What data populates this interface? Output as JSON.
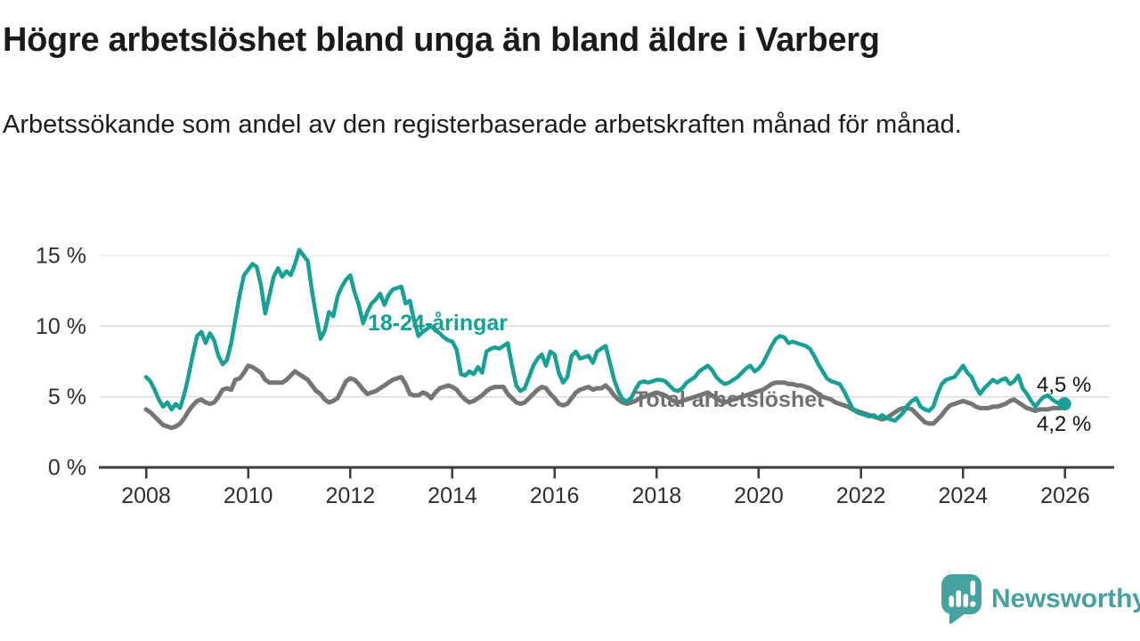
{
  "branding": {
    "logo_text": "Newsworthy",
    "logo_icon": "bar-chart-speech-bubble-icon",
    "brand_color": "#45a29e"
  },
  "chart_data": {
    "type": "line",
    "title": "Högre arbetslöshet bland unga än bland äldre i Varberg",
    "subtitle": "Arbetssökande som andel av den registerbaserade arbetskraften månad för månad.",
    "frequency": "monthly",
    "x_start": "2008-01",
    "x_end": "2025-12",
    "unit": "%",
    "grid": "horizontal",
    "legend_position": "inline-labels",
    "ylim": [
      0,
      18
    ],
    "y_ticks": [
      0,
      5,
      10,
      15
    ],
    "y_tick_labels": [
      "0 %",
      "5 %",
      "10 %",
      "15 %"
    ],
    "y_gridlines": [
      5,
      10,
      15
    ],
    "x_tick_years": [
      2008,
      2010,
      2012,
      2014,
      2016,
      2018,
      2020,
      2022,
      2024,
      2026
    ],
    "x_tick_labels": [
      "2008",
      "2010",
      "2012",
      "2014",
      "2016",
      "2018",
      "2020",
      "2022",
      "2024",
      "2026"
    ],
    "series": [
      {
        "name": "18-24-åringar",
        "color": "#17a095",
        "line_width": 4.5,
        "end_dot": true,
        "end_label": "4,5 %",
        "last_value": 4.5,
        "values": [
          6.4,
          6.1,
          5.5,
          4.8,
          4.3,
          4.6,
          4.1,
          4.5,
          4.2,
          5.2,
          6.5,
          8.0,
          9.3,
          9.6,
          8.8,
          9.5,
          9.0,
          7.9,
          7.3,
          7.6,
          8.8,
          10.5,
          12.2,
          13.6,
          14.0,
          14.4,
          14.2,
          12.9,
          10.9,
          12.2,
          13.5,
          14.1,
          13.5,
          13.9,
          13.6,
          14.4,
          15.4,
          15.0,
          14.6,
          12.5,
          10.7,
          9.1,
          9.7,
          11.0,
          10.7,
          12.1,
          12.8,
          13.3,
          13.6,
          12.4,
          11.5,
          10.2,
          11.0,
          11.6,
          11.9,
          12.3,
          11.5,
          12.2,
          12.6,
          12.7,
          12.8,
          11.6,
          11.8,
          10.4,
          9.3,
          9.6,
          9.8,
          10.0,
          9.7,
          9.5,
          9.2,
          9.0,
          8.9,
          8.3,
          6.6,
          6.5,
          6.8,
          6.6,
          7.1,
          6.7,
          8.2,
          8.4,
          8.5,
          8.4,
          8.6,
          8.8,
          7.2,
          5.8,
          5.4,
          5.6,
          6.4,
          7.2,
          7.7,
          8.0,
          7.2,
          8.2,
          8.0,
          6.7,
          6.0,
          6.4,
          7.9,
          8.2,
          7.7,
          7.8,
          7.9,
          7.4,
          8.2,
          8.4,
          8.6,
          7.4,
          6.2,
          5.4,
          4.8,
          4.7,
          4.9,
          5.5,
          6.0,
          6.1,
          6.0,
          6.1,
          6.2,
          6.2,
          6.1,
          5.8,
          5.5,
          5.4,
          5.6,
          6.0,
          6.2,
          6.4,
          6.8,
          7.0,
          7.2,
          6.9,
          6.4,
          6.1,
          5.9,
          6.0,
          6.2,
          6.4,
          6.7,
          7.0,
          7.2,
          6.8,
          7.0,
          7.4,
          8.0,
          8.6,
          9.1,
          9.3,
          9.2,
          8.8,
          8.9,
          8.8,
          8.7,
          8.6,
          8.4,
          7.9,
          7.3,
          6.8,
          6.3,
          6.1,
          6.0,
          5.9,
          5.4,
          4.8,
          4.2,
          3.9,
          3.8,
          3.7,
          3.6,
          3.7,
          3.5,
          3.7,
          3.5,
          3.4,
          3.3,
          3.6,
          3.9,
          4.4,
          4.7,
          4.9,
          4.3,
          4.1,
          4.0,
          4.3,
          5.2,
          5.9,
          6.2,
          6.3,
          6.4,
          6.8,
          7.2,
          6.7,
          6.4,
          5.7,
          5.2,
          5.6,
          5.9,
          6.2,
          6.0,
          6.2,
          6.3,
          5.9,
          6.1,
          6.5,
          5.6,
          5.2,
          4.7,
          4.3,
          4.7,
          5.0,
          5.1,
          4.8,
          4.6,
          4.5
        ]
      },
      {
        "name": "Total arbetslöshet",
        "color": "#757575",
        "line_width": 5,
        "end_dot": false,
        "end_label": "4,2 %",
        "last_value": 4.2,
        "values": [
          4.1,
          3.9,
          3.6,
          3.3,
          3.0,
          2.9,
          2.8,
          2.9,
          3.1,
          3.5,
          4.0,
          4.4,
          4.7,
          4.8,
          4.6,
          4.5,
          4.6,
          5.0,
          5.5,
          5.6,
          5.5,
          6.2,
          6.3,
          6.7,
          7.2,
          7.1,
          6.9,
          6.7,
          6.2,
          6.0,
          6.0,
          6.0,
          6.0,
          6.2,
          6.5,
          6.8,
          6.6,
          6.4,
          6.2,
          5.8,
          5.4,
          5.2,
          4.8,
          4.6,
          4.7,
          4.9,
          5.5,
          6.1,
          6.3,
          6.2,
          5.9,
          5.5,
          5.2,
          5.3,
          5.4,
          5.6,
          5.8,
          6.0,
          6.2,
          6.3,
          6.4,
          5.9,
          5.2,
          5.1,
          5.1,
          5.3,
          5.2,
          4.9,
          5.3,
          5.6,
          5.7,
          5.8,
          5.7,
          5.5,
          5.1,
          4.8,
          4.6,
          4.7,
          4.9,
          5.1,
          5.4,
          5.6,
          5.7,
          5.7,
          5.7,
          5.2,
          4.9,
          4.6,
          4.5,
          4.6,
          4.9,
          5.2,
          5.5,
          5.7,
          5.6,
          5.2,
          4.9,
          4.5,
          4.4,
          4.5,
          4.9,
          5.3,
          5.5,
          5.6,
          5.7,
          5.5,
          5.6,
          5.6,
          5.8,
          5.5,
          5.1,
          4.8,
          4.6,
          4.5,
          4.6,
          4.7,
          4.9,
          5.0,
          5.1,
          5.2,
          5.3,
          5.2,
          5.1,
          4.9,
          4.7,
          4.6,
          4.7,
          4.8,
          4.9,
          5.0,
          5.1,
          5.2,
          5.3,
          5.1,
          4.9,
          4.7,
          4.6,
          4.7,
          4.8,
          4.9,
          5.0,
          5.1,
          5.2,
          5.3,
          5.4,
          5.5,
          5.7,
          5.9,
          6.0,
          6.0,
          6.0,
          5.9,
          5.9,
          5.8,
          5.8,
          5.7,
          5.6,
          5.4,
          5.2,
          5.0,
          4.9,
          4.8,
          4.6,
          4.5,
          4.4,
          4.3,
          4.1,
          4.0,
          3.9,
          3.8,
          3.7,
          3.6,
          3.5,
          3.4,
          3.5,
          3.7,
          3.9,
          4.1,
          4.2,
          4.2,
          4.1,
          3.8,
          3.5,
          3.2,
          3.1,
          3.1,
          3.4,
          3.7,
          4.1,
          4.4,
          4.5,
          4.6,
          4.7,
          4.6,
          4.5,
          4.3,
          4.2,
          4.2,
          4.2,
          4.3,
          4.3,
          4.4,
          4.5,
          4.7,
          4.8,
          4.6,
          4.4,
          4.2,
          4.1,
          4.0,
          4.1,
          4.1,
          4.1,
          4.2,
          4.2,
          4.2
        ]
      }
    ]
  }
}
